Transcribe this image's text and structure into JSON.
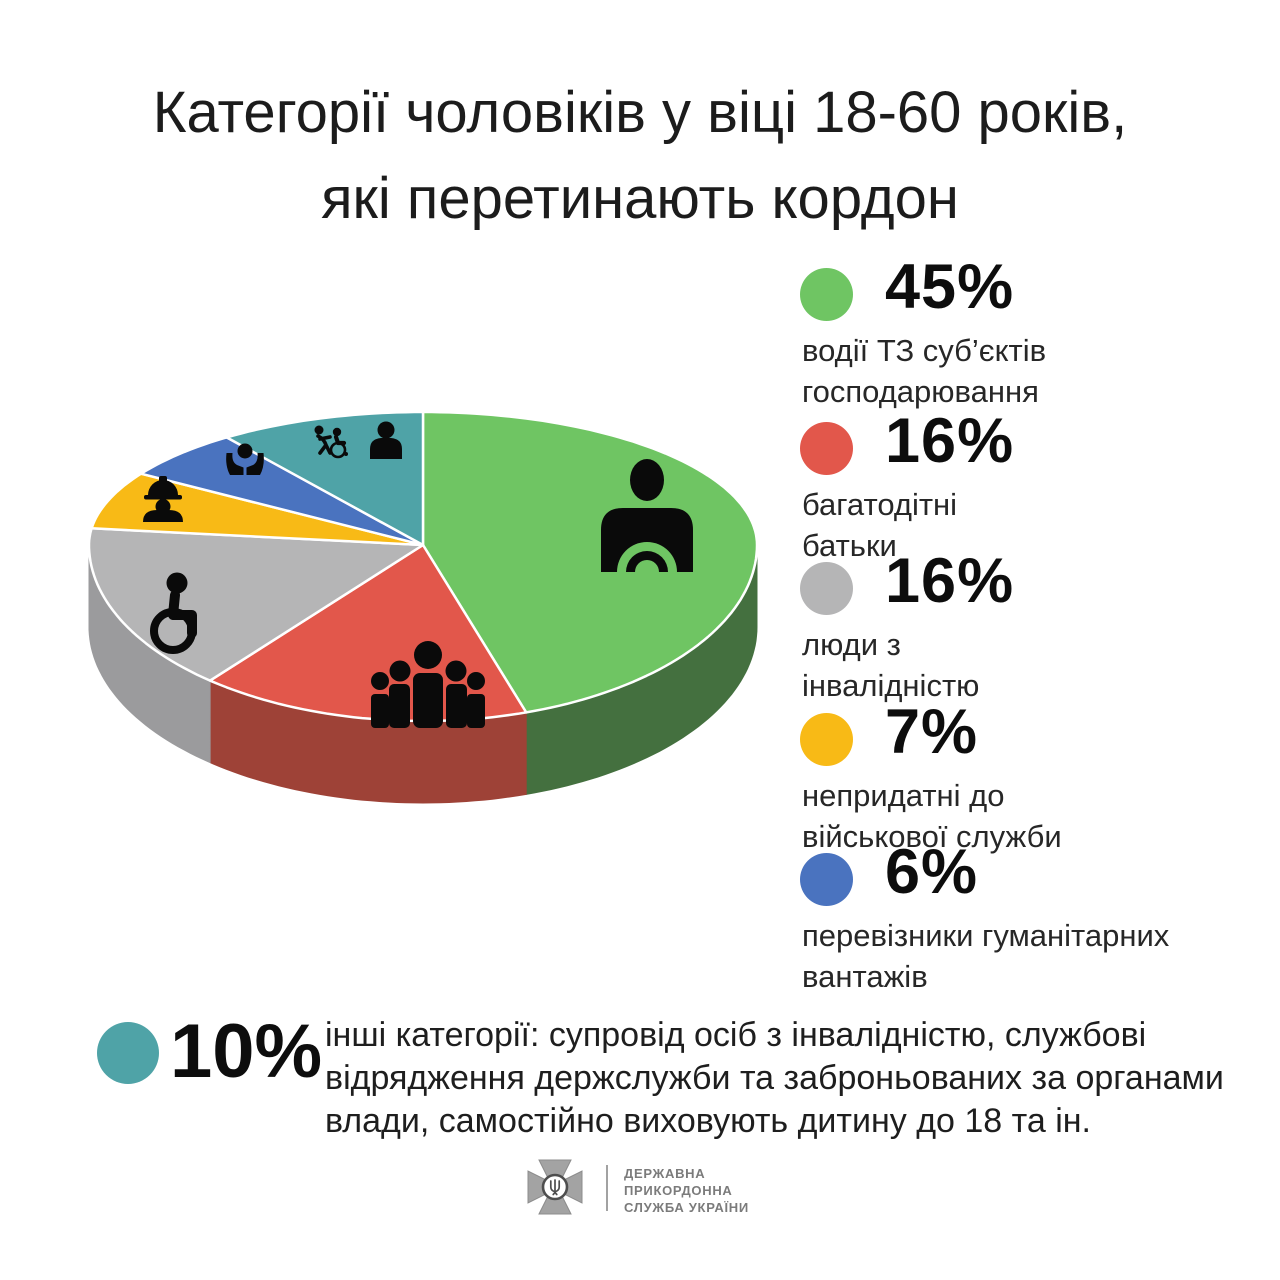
{
  "header": {
    "title": "Категорії чоловіків у віці 18-60 років,\nякі перетинають кордон"
  },
  "chart_data": {
    "type": "pie",
    "style": "3d-pie",
    "title": "Категорії чоловіків у віці 18-60 років, які перетинають кордон",
    "unit": "%",
    "start_angle_deg": 0,
    "direction": "clockwise",
    "slices": [
      {
        "id": "drivers",
        "value": 45,
        "value_label": "45%",
        "label": "водії ТЗ суб’єктів\nгосподарювання",
        "color": "#6fc563",
        "side_color": "#44703f",
        "icon": "driver-icon"
      },
      {
        "id": "fathers",
        "value": 16,
        "value_label": "16%",
        "label": "багатодітні\nбатьки",
        "color": "#e2574b",
        "side_color": "#9e4237",
        "icon": "family-icon"
      },
      {
        "id": "disabled",
        "value": 16,
        "value_label": "16%",
        "label": "люди з\nінвалідністю",
        "color": "#b5b5b6",
        "side_color": "#9b9b9d",
        "icon": "wheelchair-icon"
      },
      {
        "id": "unfit",
        "value": 7,
        "value_label": "7%",
        "label": "непридатні до\nвійськової служби",
        "color": "#f8ba16",
        "side_color": "#c3900e",
        "icon": "worker-icon"
      },
      {
        "id": "humanitarian",
        "value": 6,
        "value_label": "6%",
        "label": "перевізники гуманітарних\nвантажів",
        "color": "#4a73bf",
        "side_color": "#37568f",
        "icon": "caring-hands-icon"
      },
      {
        "id": "other",
        "value": 10,
        "value_label": "10%",
        "label": "інші категорії: супровід осіб з інвалідністю, службові\nвідрядження держслужби та заброньованих за органами\nвлади, самостійно виховують дитину до 18 та ін.",
        "color": "#4fa3a7",
        "side_color": "#3a7a7d",
        "icon": "assist-wheelchair-icon person-icon"
      }
    ],
    "legend_position": "right-and-bottom"
  },
  "footer": {
    "org_name": "ДЕРЖАВНА\nПРИКОРДОННА\nСЛУЖБА УКРАЇНИ"
  }
}
